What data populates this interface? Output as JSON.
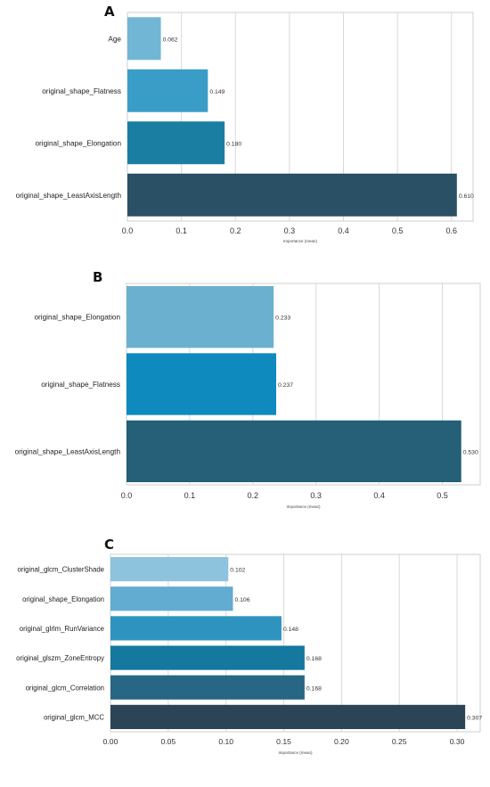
{
  "panels": [
    {
      "letter": "A"
    },
    {
      "letter": "B"
    },
    {
      "letter": "C"
    }
  ],
  "chart_data": [
    {
      "type": "bar",
      "orientation": "horizontal",
      "categories": [
        "Age",
        "original_shape_Flatness",
        "original_shape_Elongation",
        "original_shape_LeastAxisLength"
      ],
      "values": [
        0.062,
        0.149,
        0.18,
        0.61
      ],
      "value_labels": [
        "0.062",
        "0.149",
        "0.180",
        "0.610"
      ],
      "colors": [
        "#72b6d6",
        "#3a9dc7",
        "#1a7ea3",
        "#2a5066"
      ],
      "xlabel": "Importance (mean)",
      "xlim": [
        0,
        0.64
      ],
      "xticks": [
        "0.0",
        "0.1",
        "0.2",
        "0.3",
        "0.4",
        "0.5",
        "0.6"
      ],
      "xtick_values": [
        0,
        0.1,
        0.2,
        0.3,
        0.4,
        0.5,
        0.6
      ],
      "grid": true
    },
    {
      "type": "bar",
      "orientation": "horizontal",
      "categories": [
        "original_shape_Elongation",
        "original_shape_Flatness",
        "original_shape_LeastAxisLength"
      ],
      "values": [
        0.233,
        0.237,
        0.53
      ],
      "value_labels": [
        "0.233",
        "0.237",
        "0.530"
      ],
      "colors": [
        "#6cb0cf",
        "#0e8abf",
        "#255f78"
      ],
      "xlabel": "Importance (mean)",
      "xlim": [
        0,
        0.56
      ],
      "xticks": [
        "0.0",
        "0.1",
        "0.2",
        "0.3",
        "0.4",
        "0.5"
      ],
      "xtick_values": [
        0,
        0.1,
        0.2,
        0.3,
        0.4,
        0.5
      ],
      "grid": true
    },
    {
      "type": "bar",
      "orientation": "horizontal",
      "categories": [
        "original_glcm_ClusterShade",
        "original_shape_Elongation",
        "original_glrlm_RunVariance",
        "original_glszm_ZoneEntropy",
        "original_glcm_Correlation",
        "original_glcm_MCC"
      ],
      "values": [
        0.102,
        0.106,
        0.148,
        0.168,
        0.168,
        0.307
      ],
      "value_labels": [
        "0.102",
        "0.106",
        "0.148",
        "0.168",
        "0.168",
        "0.307"
      ],
      "colors": [
        "#8dc3dd",
        "#61acd0",
        "#2f93c0",
        "#14789f",
        "#276783",
        "#2c4556"
      ],
      "xlabel": "Importance (mean)",
      "xlim": [
        0,
        0.32
      ],
      "xticks": [
        "0.00",
        "0.05",
        "0.10",
        "0.15",
        "0.20",
        "0.25",
        "0.30"
      ],
      "xtick_values": [
        0,
        0.05,
        0.1,
        0.15,
        0.2,
        0.25,
        0.3
      ],
      "grid": true
    }
  ]
}
